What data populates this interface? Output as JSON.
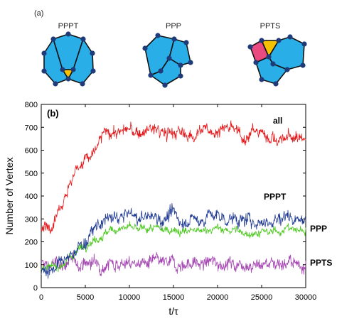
{
  "panel_a": {
    "label": "(a)",
    "motifs": [
      {
        "name": "PPPT",
        "colors": {
          "polygon": "#29aee8",
          "triangle": "#f5c100"
        }
      },
      {
        "name": "PPP",
        "colors": {
          "polygon": "#29aee8"
        }
      },
      {
        "name": "PPTS",
        "colors": {
          "polygon": "#29aee8",
          "triangle": "#f5c100",
          "square": "#e94a7f"
        }
      }
    ],
    "vertex_color": "#1f3b7a",
    "edge_color": "#111111"
  },
  "chart_data": {
    "type": "line",
    "panel_label": "(b)",
    "xlabel": "t/τ",
    "ylabel": "Number of Vertex",
    "xlim": [
      0,
      30000
    ],
    "ylim": [
      0,
      800
    ],
    "xticks": [
      0,
      5000,
      10000,
      15000,
      20000,
      25000,
      30000
    ],
    "yticks": [
      0,
      100,
      200,
      300,
      400,
      500,
      600,
      700,
      800
    ],
    "grid": false,
    "x": [
      0,
      1000,
      2000,
      3000,
      4000,
      5000,
      6000,
      7000,
      8000,
      9000,
      10000,
      11000,
      12000,
      13000,
      14000,
      15000,
      16000,
      17000,
      18000,
      19000,
      20000,
      21000,
      22000,
      23000,
      24000,
      25000,
      26000,
      27000,
      28000,
      29000,
      30000
    ],
    "series": [
      {
        "name": "all",
        "color": "#e41a1c",
        "values": [
          240,
          280,
          350,
          430,
          520,
          560,
          580,
          670,
          680,
          680,
          690,
          670,
          690,
          690,
          670,
          680,
          670,
          660,
          690,
          680,
          690,
          700,
          680,
          660,
          680,
          680,
          660,
          640,
          660,
          650,
          660
        ]
      },
      {
        "name": "PPPT",
        "color": "#1f3a93",
        "values": [
          80,
          80,
          100,
          120,
          170,
          200,
          250,
          290,
          300,
          310,
          320,
          300,
          310,
          310,
          300,
          320,
          290,
          300,
          290,
          320,
          310,
          300,
          300,
          290,
          290,
          290,
          290,
          300,
          320,
          300,
          300
        ]
      },
      {
        "name": "PPP",
        "color": "#4cc81e",
        "values": [
          80,
          80,
          100,
          120,
          160,
          190,
          210,
          230,
          250,
          260,
          260,
          250,
          260,
          255,
          250,
          260,
          240,
          250,
          240,
          260,
          255,
          250,
          250,
          240,
          240,
          240,
          240,
          250,
          260,
          250,
          250
        ]
      },
      {
        "name": "PPTS",
        "color": "#a445b2",
        "values": [
          100,
          100,
          105,
          110,
          110,
          105,
          110,
          100,
          110,
          110,
          100,
          110,
          105,
          110,
          100,
          105,
          100,
          110,
          100,
          110,
          110,
          110,
          100,
          110,
          100,
          100,
          110,
          110,
          110,
          100,
          110
        ]
      }
    ]
  }
}
